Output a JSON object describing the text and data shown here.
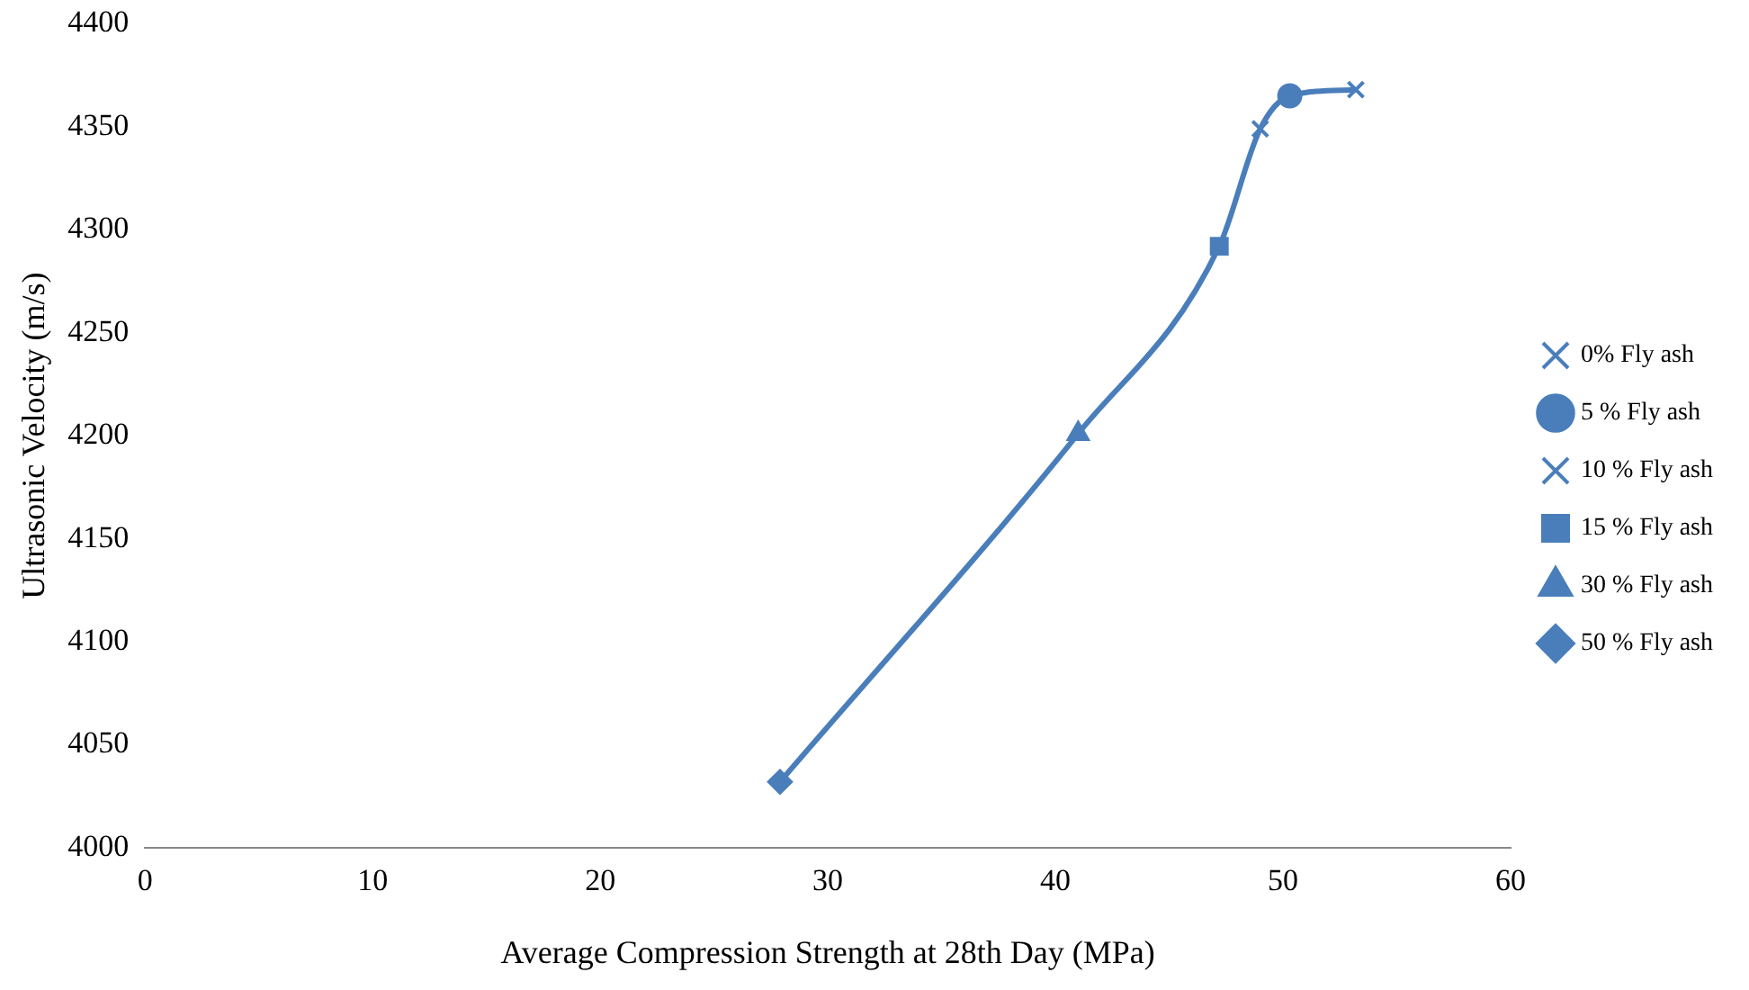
{
  "chart_data": {
    "type": "scatter",
    "xlabel": "Average Compression Strength at 28th Day (MPa)",
    "ylabel": "Ultrasonic Velocity (m/s)",
    "xlim": [
      0,
      60
    ],
    "xticks": [
      0,
      10,
      20,
      30,
      40,
      50,
      60
    ],
    "ylim": [
      4000,
      4400
    ],
    "yticks": [
      4000,
      4050,
      4100,
      4150,
      4200,
      4250,
      4300,
      4350,
      4400
    ],
    "grid": false,
    "legend": "right",
    "series": [
      {
        "type": "line",
        "color": "#4a7ebb",
        "marker": "none",
        "x": [
          27.9,
          41.0,
          47.2,
          49.0,
          50.3,
          53.2
        ],
        "values": [
          4032,
          4201,
          4292,
          4349,
          4365,
          4368
        ]
      },
      {
        "name": "0% Fly ash",
        "color": "#4a7ebb",
        "marker": "cross",
        "x": [
          53.2
        ],
        "values": [
          4368
        ]
      },
      {
        "name": "5 % Fly ash",
        "color": "#4a7ebb",
        "marker": "circle",
        "x": [
          50.3
        ],
        "values": [
          4365
        ]
      },
      {
        "name": "10 % Fly ash",
        "color": "#4a7ebb",
        "marker": "cross",
        "x": [
          49.0
        ],
        "values": [
          4349
        ]
      },
      {
        "name": "15 % Fly ash",
        "color": "#4a7ebb",
        "marker": "square",
        "x": [
          47.2
        ],
        "values": [
          4292
        ]
      },
      {
        "name": "30 % Fly ash",
        "color": "#4a7ebb",
        "marker": "triangle",
        "x": [
          41.0
        ],
        "values": [
          4201
        ]
      },
      {
        "name": "50 % Fly ash",
        "color": "#4a7ebb",
        "marker": "diamond",
        "x": [
          27.9
        ],
        "values": [
          4032
        ]
      }
    ]
  }
}
